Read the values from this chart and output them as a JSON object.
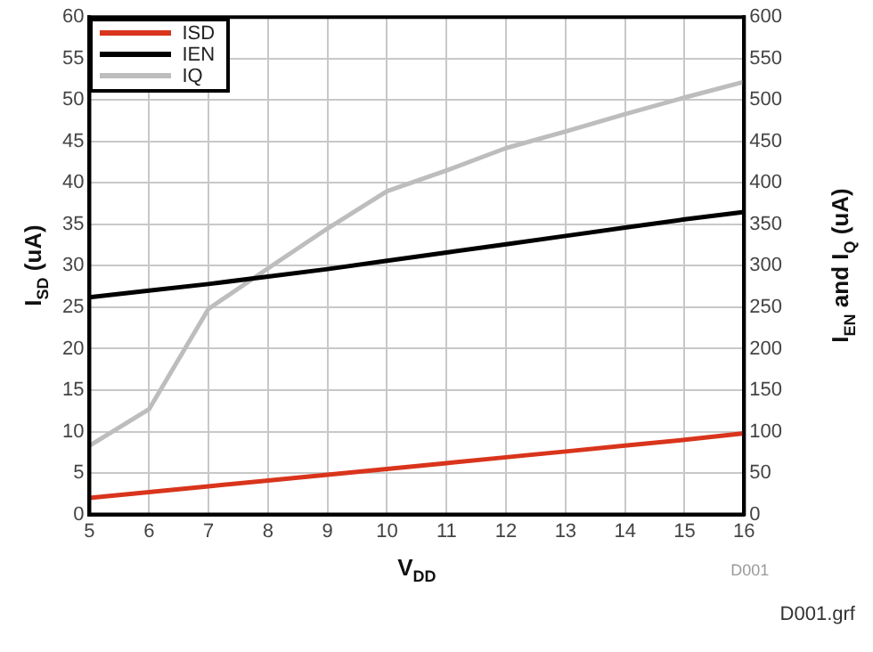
{
  "chart_data": {
    "type": "line",
    "xlabel": "V$_{DD}$",
    "ylabel": "I$_{SD}$ (uA)",
    "y2label": "I$_{EN}$ and I$_{Q}$ (uA)",
    "x": [
      5,
      6,
      7,
      8,
      9,
      10,
      11,
      12,
      13,
      14,
      15,
      16
    ],
    "series": [
      {
        "name": "ISD",
        "color": "#d9341c",
        "values": [
          2.0,
          2.7,
          3.4,
          4.1,
          4.8,
          5.5,
          6.2,
          6.9,
          7.6,
          8.3,
          9.0,
          9.8
        ]
      },
      {
        "name": "IEN",
        "color": "#000000",
        "axis": "y2",
        "values": [
          262,
          270,
          278,
          287,
          296,
          306,
          316,
          326,
          336,
          346,
          356,
          365
        ]
      },
      {
        "name": "IQ",
        "color": "#bdbdbd",
        "axis": "y2",
        "values": [
          83,
          127,
          248,
          297,
          345,
          390,
          415,
          442,
          462,
          483,
          503,
          522
        ]
      }
    ],
    "xlim": [
      5,
      16
    ],
    "xticks": [
      5,
      6,
      7,
      8,
      9,
      10,
      11,
      12,
      13,
      14,
      15,
      16
    ],
    "ylim": [
      0,
      60
    ],
    "yticks": [
      0,
      5,
      10,
      15,
      20,
      25,
      30,
      35,
      40,
      45,
      50,
      55,
      60
    ],
    "y2lim": [
      0,
      600
    ],
    "y2ticks": [
      0,
      50,
      100,
      150,
      200,
      250,
      300,
      350,
      400,
      450,
      500,
      550,
      600
    ],
    "grid": true,
    "legend": "top left",
    "marker": "none",
    "line_style": "solid",
    "annotations": [
      "D001",
      "D001.grf"
    ]
  }
}
